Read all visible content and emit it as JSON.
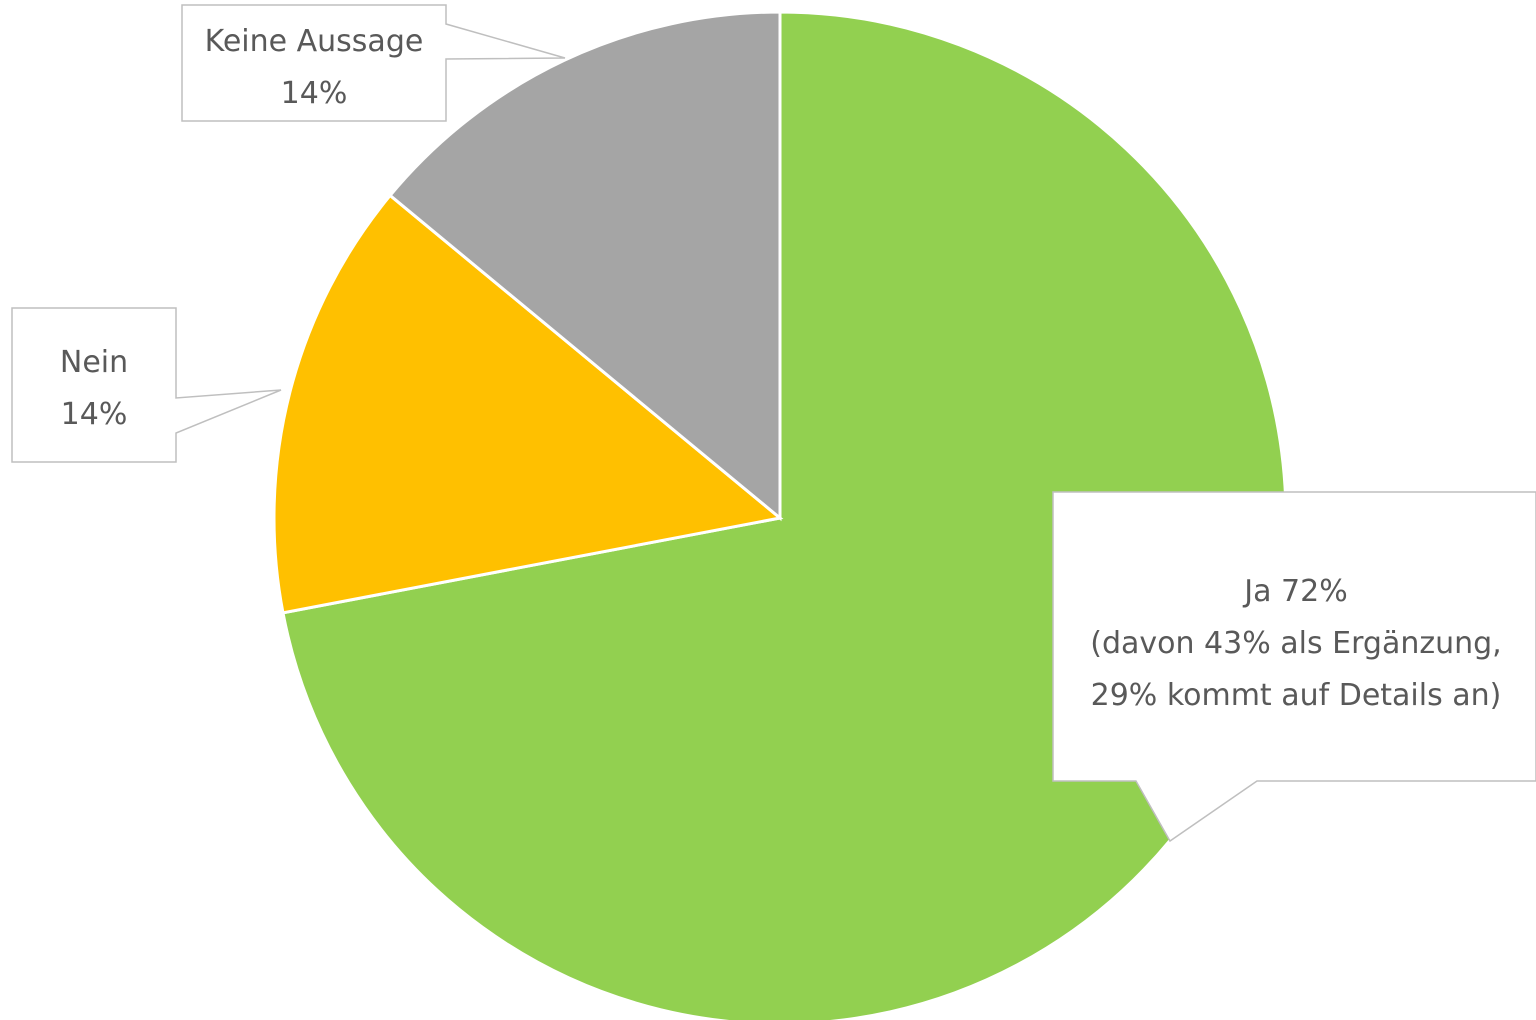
{
  "chart_data": {
    "type": "pie",
    "slices": [
      {
        "label": "Ja",
        "value": 72,
        "color": "#92d050"
      },
      {
        "label": "Nein",
        "value": 14,
        "color": "#ffc000"
      },
      {
        "label": "Keine Aussage",
        "value": 14,
        "color": "#a5a5a5"
      }
    ],
    "start_angle": "12 o'clock",
    "direction": "clockwise",
    "legend": "none",
    "data_labels": [
      {
        "slice": "Keine Aussage",
        "lines": [
          "Keine Aussage",
          "14%"
        ]
      },
      {
        "slice": "Nein",
        "lines": [
          "Nein",
          "14%"
        ]
      },
      {
        "slice": "Ja",
        "lines": [
          "Ja 72%",
          "(davon 43% als Ergänzung,",
          "29% kommt auf Details an)"
        ]
      }
    ]
  }
}
